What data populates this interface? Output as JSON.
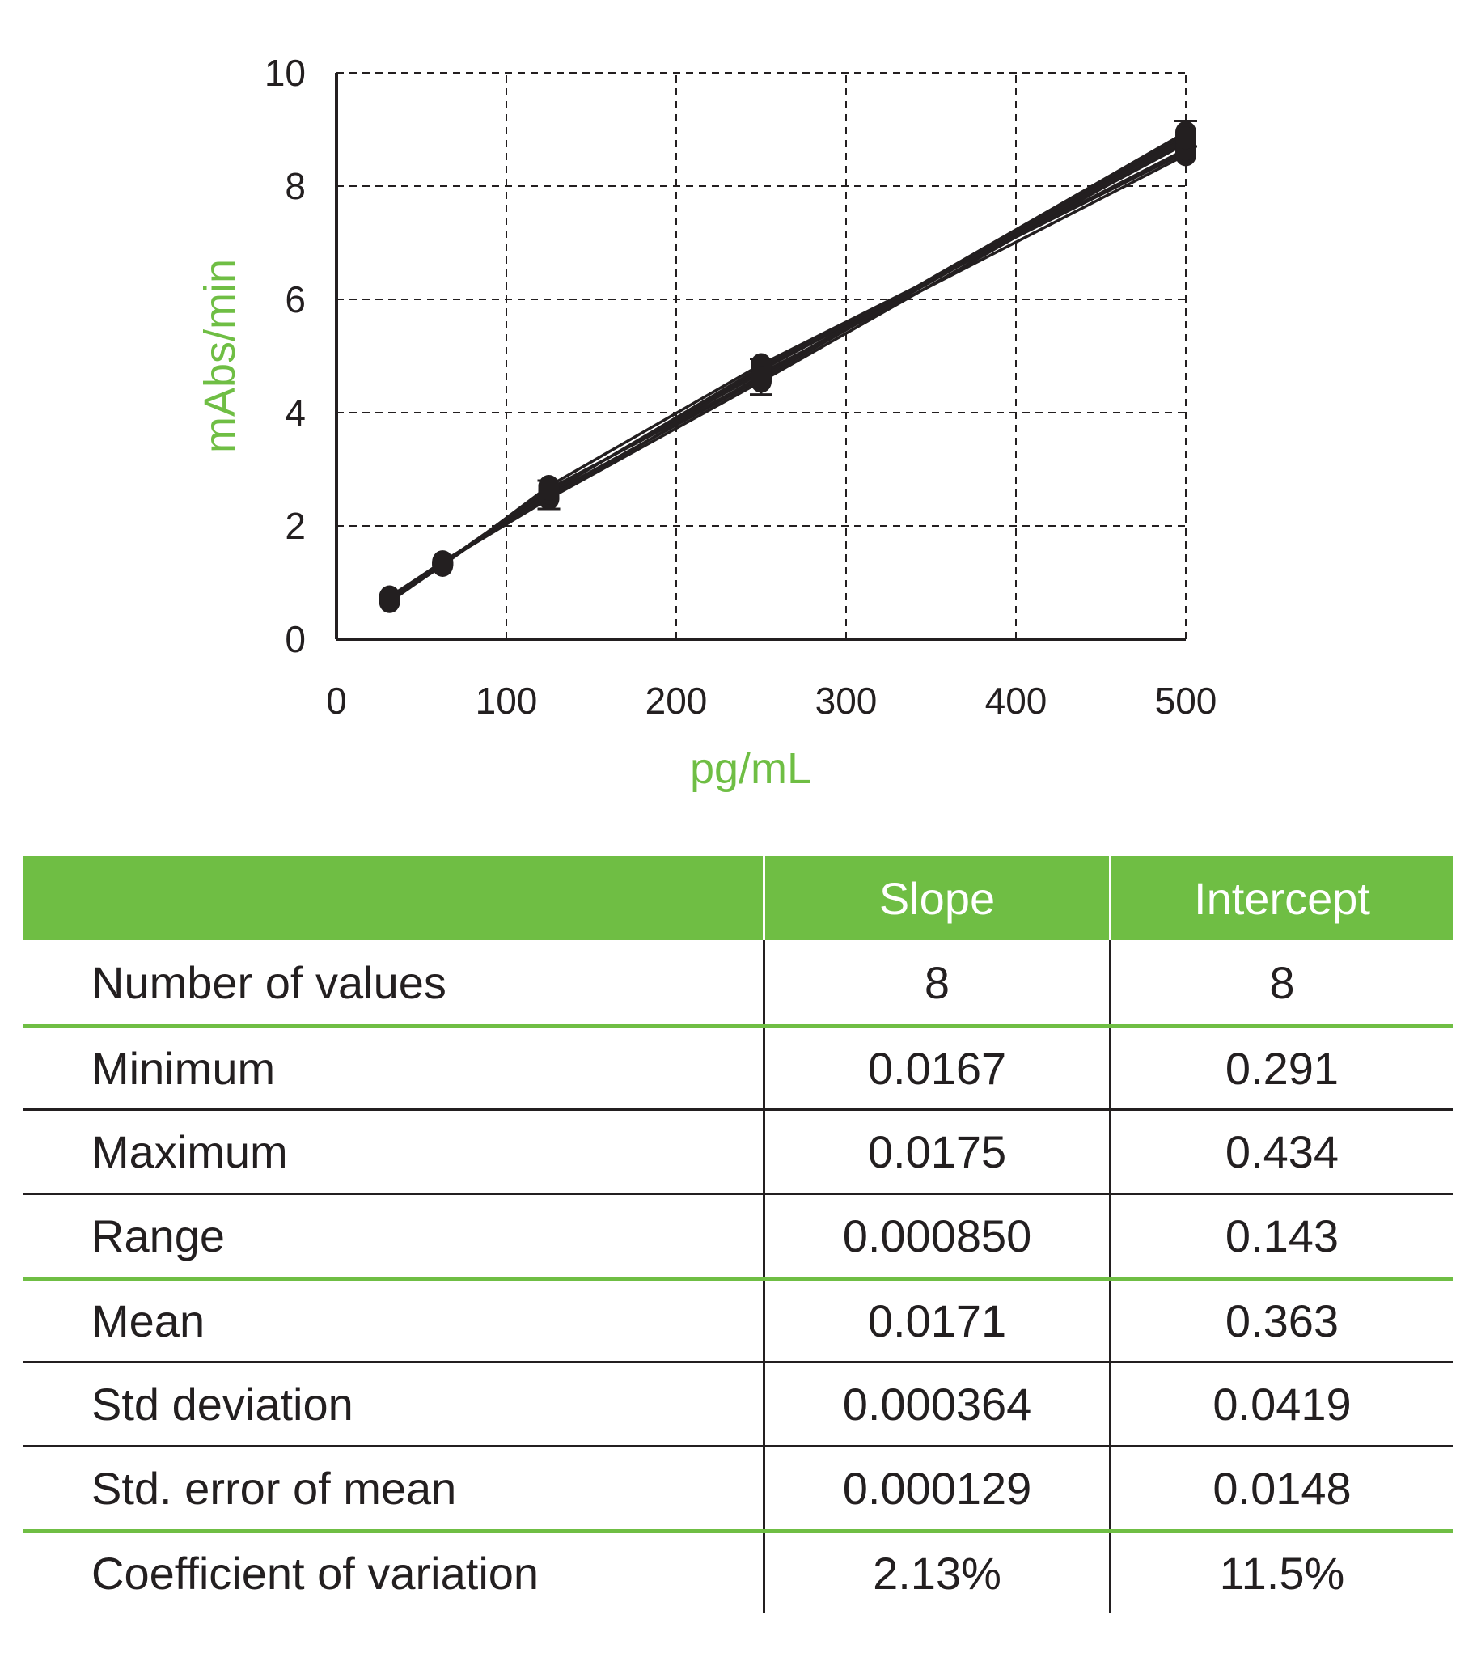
{
  "chart_data": {
    "type": "line",
    "xlabel": "pg/mL",
    "ylabel": "mAbs/min",
    "xlim": [
      0,
      500
    ],
    "ylim": [
      0,
      10
    ],
    "xticks": [
      "0",
      "100",
      "200",
      "300",
      "400",
      "500"
    ],
    "yticks": [
      "0",
      "2",
      "4",
      "6",
      "8",
      "10"
    ],
    "grid": true,
    "x": [
      31.25,
      62.5,
      125,
      250,
      500
    ],
    "series": [
      {
        "values": [
          0.75,
          1.36,
          2.55,
          4.6,
          8.9
        ]
      },
      {
        "values": [
          0.7,
          1.32,
          2.6,
          4.75,
          8.75
        ]
      },
      {
        "values": [
          0.68,
          1.3,
          2.7,
          4.85,
          8.6
        ]
      },
      {
        "values": [
          0.72,
          1.35,
          2.48,
          4.55,
          8.8
        ]
      },
      {
        "values": [
          0.66,
          1.31,
          2.62,
          4.7,
          8.55
        ]
      },
      {
        "values": [
          0.74,
          1.37,
          2.5,
          4.65,
          8.95
        ]
      },
      {
        "values": [
          0.69,
          1.33,
          2.58,
          4.8,
          8.65
        ]
      },
      {
        "values": [
          0.71,
          1.34,
          2.65,
          4.62,
          8.85
        ]
      }
    ],
    "error_bars": {
      "x": [
        125,
        250,
        500
      ],
      "low": [
        2.3,
        4.32,
        8.7
      ],
      "high": [
        2.8,
        4.95,
        9.15
      ]
    }
  },
  "table": {
    "headers": [
      "",
      "Slope",
      "Intercept"
    ],
    "rows": [
      {
        "label": "Number of values",
        "slope": "8",
        "intercept": "8"
      },
      {
        "label": "Minimum",
        "slope": "0.0167",
        "intercept": "0.291"
      },
      {
        "label": "Maximum",
        "slope": "0.0175",
        "intercept": "0.434"
      },
      {
        "label": "Range",
        "slope": "0.000850",
        "intercept": "0.143"
      },
      {
        "label": "Mean",
        "slope": "0.0171",
        "intercept": "0.363"
      },
      {
        "label": "Std deviation",
        "slope": "0.000364",
        "intercept": "0.0419"
      },
      {
        "label": "Std. error of mean",
        "slope": "0.000129",
        "intercept": "0.0148"
      },
      {
        "label": "Coefficient of variation",
        "slope": "2.13%",
        "intercept": "11.5%"
      }
    ]
  },
  "colors": {
    "accent": "#6fbe44",
    "text": "#231f20"
  }
}
